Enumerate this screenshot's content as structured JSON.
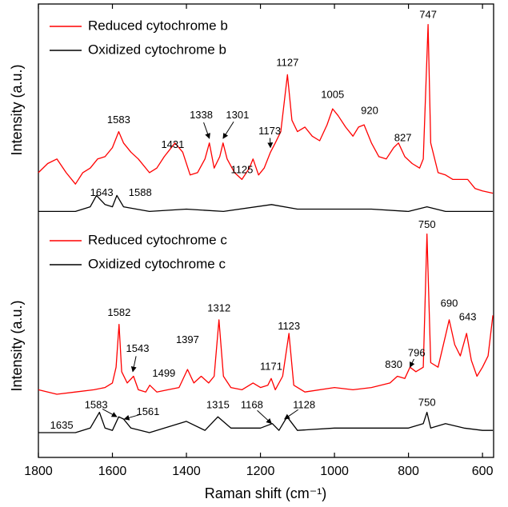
{
  "chart_data": [
    {
      "type": "line",
      "ylabel": "Intensity (a.u.)",
      "xlim": [
        1800,
        570
      ],
      "ylim": [
        0,
        100
      ],
      "legend": "upper left",
      "series": [
        {
          "name": "Reduced cytochrome b",
          "color": "#ff0000",
          "x": [
            1800,
            1775,
            1750,
            1725,
            1700,
            1680,
            1660,
            1640,
            1620,
            1600,
            1583,
            1570,
            1550,
            1530,
            1500,
            1480,
            1460,
            1431,
            1410,
            1390,
            1370,
            1350,
            1338,
            1325,
            1310,
            1301,
            1290,
            1270,
            1250,
            1230,
            1220,
            1205,
            1190,
            1173,
            1160,
            1145,
            1127,
            1115,
            1100,
            1080,
            1060,
            1040,
            1020,
            1005,
            990,
            970,
            950,
            935,
            920,
            900,
            880,
            860,
            840,
            827,
            810,
            790,
            770,
            760,
            747,
            740,
            720,
            700,
            680,
            660,
            640,
            620,
            600,
            572
          ],
          "values": [
            26,
            30,
            32,
            26,
            21,
            26,
            28,
            32,
            33,
            37,
            44,
            39,
            35,
            32,
            26,
            28,
            33,
            39,
            35,
            25,
            26,
            32,
            39,
            28,
            33,
            39,
            32,
            26,
            23,
            28,
            32,
            25,
            28,
            35,
            39,
            44,
            69,
            49,
            44,
            46,
            42,
            40,
            47,
            54,
            51,
            46,
            42,
            46,
            47,
            39,
            33,
            32,
            37,
            39,
            33,
            30,
            28,
            32,
            91,
            39,
            26,
            25,
            23,
            23,
            23,
            19,
            18,
            17
          ]
        },
        {
          "name": "Oxidized cytochrome b",
          "color": "#000000",
          "x": [
            1800,
            1700,
            1660,
            1643,
            1620,
            1600,
            1588,
            1570,
            1500,
            1400,
            1300,
            1170,
            1100,
            1000,
            900,
            800,
            750,
            700,
            600,
            572
          ],
          "values": [
            9,
            9,
            11,
            16,
            12,
            11,
            16,
            11,
            9,
            10,
            9,
            12,
            10,
            10,
            10,
            9,
            11,
            9,
            9,
            9
          ]
        }
      ],
      "annotations": [
        {
          "text": "747",
          "x": 747,
          "y": 95
        },
        {
          "text": "1127",
          "x": 1127,
          "y": 74
        },
        {
          "text": "1005",
          "x": 1005,
          "y": 60
        },
        {
          "text": "920",
          "x": 905,
          "y": 53
        },
        {
          "text": "827",
          "x": 815,
          "y": 41
        },
        {
          "text": "1583",
          "x": 1583,
          "y": 49
        },
        {
          "text": "1431",
          "x": 1437,
          "y": 38
        },
        {
          "text": "1338",
          "x": 1360,
          "y": 51,
          "arrow_to": [
            1338,
            41
          ]
        },
        {
          "text": "1301",
          "x": 1262,
          "y": 51,
          "arrow_to": [
            1301,
            41
          ]
        },
        {
          "text": "1173",
          "x": 1175,
          "y": 44,
          "arrow_to": [
            1173,
            37
          ]
        },
        {
          "text": "1125",
          "x": 1250,
          "y": 27
        },
        {
          "text": "1643",
          "x": 1629,
          "y": 17
        },
        {
          "text": "1588",
          "x": 1525,
          "y": 17
        }
      ]
    },
    {
      "type": "line",
      "ylabel": "Intensity (a.u.)",
      "xlabel": "Raman shift (cm⁻¹)",
      "xlim": [
        1800,
        570
      ],
      "ylim": [
        0,
        106
      ],
      "legend": "upper left",
      "xticks": [
        1800,
        1600,
        1400,
        1200,
        1000,
        800,
        600
      ],
      "series": [
        {
          "name": "Reduced cytochrome c",
          "color": "#ff0000",
          "x": [
            1800,
            1750,
            1700,
            1650,
            1620,
            1600,
            1590,
            1582,
            1575,
            1560,
            1543,
            1530,
            1510,
            1499,
            1480,
            1450,
            1420,
            1397,
            1380,
            1360,
            1340,
            1325,
            1312,
            1300,
            1280,
            1250,
            1220,
            1200,
            1180,
            1171,
            1160,
            1140,
            1123,
            1110,
            1080,
            1000,
            950,
            900,
            850,
            830,
            810,
            796,
            780,
            760,
            750,
            740,
            720,
            700,
            690,
            675,
            660,
            643,
            630,
            615,
            600,
            585,
            572
          ],
          "values": [
            30,
            28,
            29,
            30,
            31,
            33,
            40,
            59,
            38,
            33,
            36,
            30,
            29,
            32,
            29,
            30,
            31,
            39,
            33,
            36,
            33,
            36,
            61,
            36,
            31,
            30,
            33,
            31,
            32,
            35,
            30,
            36,
            55,
            32,
            29,
            31,
            30,
            31,
            33,
            36,
            35,
            40,
            38,
            40,
            99,
            42,
            40,
            54,
            61,
            50,
            45,
            55,
            43,
            36,
            40,
            45,
            63
          ]
        },
        {
          "name": "Oxidized cytochrome c",
          "color": "#000000",
          "x": [
            1800,
            1700,
            1660,
            1635,
            1620,
            1600,
            1583,
            1570,
            1550,
            1500,
            1400,
            1350,
            1315,
            1280,
            1200,
            1168,
            1150,
            1128,
            1100,
            1000,
            900,
            800,
            760,
            750,
            740,
            700,
            650,
            600,
            572
          ],
          "values": [
            11,
            11,
            13,
            20,
            13,
            12,
            18,
            17,
            13,
            11,
            16,
            12,
            18,
            13,
            13,
            15,
            12,
            18,
            12,
            13,
            13,
            13,
            15,
            20,
            13,
            15,
            13,
            12,
            12
          ]
        }
      ],
      "annotations": [
        {
          "text": "750",
          "x": 750,
          "y": 103
        },
        {
          "text": "1582",
          "x": 1582,
          "y": 64
        },
        {
          "text": "1543",
          "x": 1532,
          "y": 48,
          "arrow_to": [
            1545,
            38
          ]
        },
        {
          "text": "1499",
          "x": 1461,
          "y": 37
        },
        {
          "text": "1397",
          "x": 1397,
          "y": 52
        },
        {
          "text": "1312",
          "x": 1312,
          "y": 66
        },
        {
          "text": "1171",
          "x": 1171,
          "y": 40
        },
        {
          "text": "1123",
          "x": 1123,
          "y": 58
        },
        {
          "text": "830",
          "x": 840,
          "y": 41
        },
        {
          "text": "796",
          "x": 778,
          "y": 46,
          "arrow_to": [
            796,
            40
          ]
        },
        {
          "text": "690",
          "x": 690,
          "y": 68
        },
        {
          "text": "643",
          "x": 640,
          "y": 62
        },
        {
          "text": "1635",
          "x": 1737,
          "y": 14
        },
        {
          "text": "1583",
          "x": 1644,
          "y": 23,
          "arrow_to": [
            1588,
            18
          ]
        },
        {
          "text": "1561",
          "x": 1504,
          "y": 20,
          "arrow_to": [
            1568,
            17
          ]
        },
        {
          "text": "1315",
          "x": 1315,
          "y": 23
        },
        {
          "text": "1168",
          "x": 1223,
          "y": 23,
          "arrow_to": [
            1170,
            15
          ]
        },
        {
          "text": "1128",
          "x": 1082,
          "y": 23,
          "arrow_to": [
            1135,
            17
          ]
        },
        {
          "text": "750",
          "x": 750,
          "y": 24
        }
      ]
    }
  ]
}
